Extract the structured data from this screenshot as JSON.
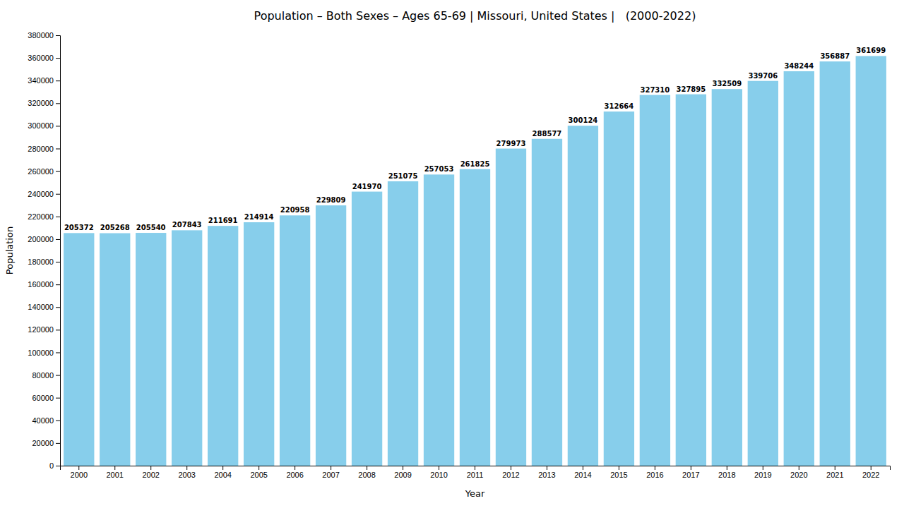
{
  "chart_data": {
    "type": "bar",
    "title": "Population – Both Sexes – Ages 65-69 | Missouri, United States |   (2000-2022)",
    "x_label": "Year",
    "y_label": "Population",
    "categories": [
      "2000",
      "2001",
      "2002",
      "2003",
      "2004",
      "2005",
      "2006",
      "2007",
      "2008",
      "2009",
      "2010",
      "2011",
      "2012",
      "2013",
      "2014",
      "2015",
      "2016",
      "2017",
      "2018",
      "2019",
      "2020",
      "2021",
      "2022"
    ],
    "values": [
      205372,
      205268,
      205540,
      207843,
      211691,
      214914,
      220958,
      229809,
      241970,
      251075,
      257053,
      261825,
      279973,
      288577,
      300124,
      312664,
      327310,
      327895,
      332509,
      339706,
      348244,
      356887,
      361699
    ],
    "color": "#87CEEB",
    "ylim": [
      0,
      380000
    ],
    "yticks": [
      0,
      20000,
      40000,
      60000,
      80000,
      100000,
      120000,
      140000,
      160000,
      180000,
      200000,
      220000,
      240000,
      260000,
      280000,
      300000,
      320000,
      340000,
      360000,
      380000
    ],
    "grid": false,
    "data_labels": true
  }
}
